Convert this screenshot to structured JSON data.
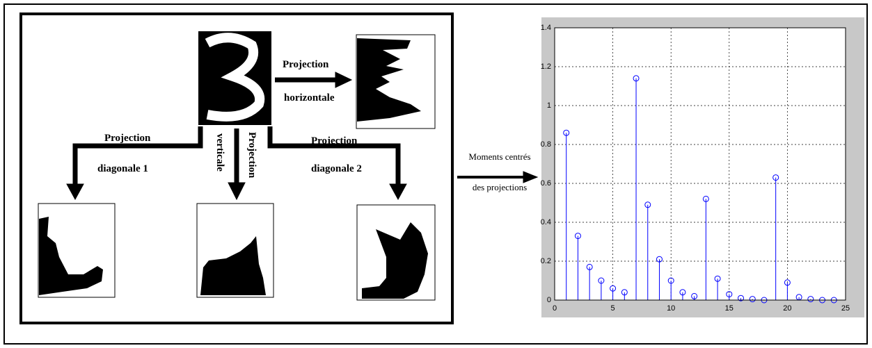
{
  "labels": {
    "proj_h_1": "Projection",
    "proj_h_2": "horizontale",
    "proj_d1_1": "Projection",
    "proj_d1_2": "diagonale 1",
    "proj_v_1": "Projection",
    "proj_v_2": "verticale",
    "proj_d2_1": "Projection",
    "proj_d2_2": "diagonale 2",
    "moments_1": "Moments centrés",
    "moments_2": "des projections"
  },
  "chart_data": {
    "type": "stem",
    "color": "#0000ff",
    "x": [
      1,
      2,
      3,
      4,
      5,
      6,
      7,
      8,
      9,
      10,
      11,
      12,
      13,
      14,
      15,
      16,
      17,
      18,
      19,
      20,
      21,
      22,
      23,
      24
    ],
    "values": [
      0.86,
      0.33,
      0.17,
      0.1,
      0.06,
      0.04,
      1.14,
      0.49,
      0.21,
      0.1,
      0.04,
      0.02,
      0.52,
      0.11,
      0.03,
      0.01,
      0.005,
      0.0,
      0.63,
      0.09,
      0.015,
      0.005,
      0.0,
      0.0
    ],
    "xlim": [
      0,
      25
    ],
    "xticks": [
      0,
      5,
      10,
      15,
      20,
      25
    ],
    "ylim": [
      0,
      1.4
    ],
    "yticks": [
      0,
      0.2,
      0.4,
      0.6,
      0.8,
      1,
      1.2,
      1.4
    ],
    "grid": true
  }
}
